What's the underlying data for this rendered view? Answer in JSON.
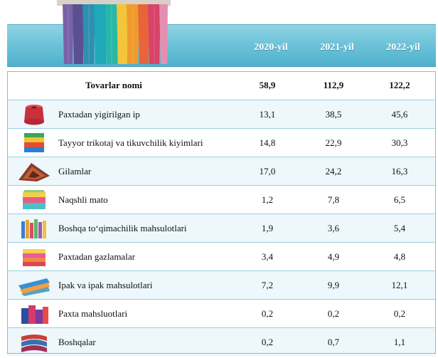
{
  "header": {
    "years": [
      "2020-yil",
      "2021-yil",
      "2022-yil"
    ]
  },
  "table": {
    "head": {
      "label": "Tovarlar nomi",
      "values": [
        "58,9",
        "112,9",
        "122,2"
      ]
    },
    "rows": [
      {
        "icon": "yarn-spool-icon",
        "name": "Paxtadan yigirilgan ip",
        "values": [
          "13,1",
          "38,5",
          "45,6"
        ]
      },
      {
        "icon": "folded-clothes-icon",
        "name": "Tayyor trikotaj va tikuvchilik kiyimlari",
        "values": [
          "14,8",
          "22,9",
          "30,3"
        ]
      },
      {
        "icon": "carpet-icon",
        "name": "Gilamlar",
        "values": [
          "17,0",
          "24,2",
          "16,3"
        ]
      },
      {
        "icon": "patterned-fabric-icon",
        "name": "Naqshli mato",
        "values": [
          "1,2",
          "7,8",
          "6,5"
        ]
      },
      {
        "icon": "textile-products-icon",
        "name": "Boshqa to‘qimachilik mahsulotlari",
        "values": [
          "1,9",
          "3,6",
          "5,4"
        ]
      },
      {
        "icon": "fabric-stack-icon",
        "name": "Paxtadan gazlamalar",
        "values": [
          "3,4",
          "4,9",
          "4,8"
        ]
      },
      {
        "icon": "silk-rolls-icon",
        "name": "Ipak va ipak mahsulotlari",
        "values": [
          "7,2",
          "9,9",
          "12,1"
        ]
      },
      {
        "icon": "cotton-products-icon",
        "name": "Paxta mahsluotlari",
        "values": [
          "0,2",
          "0,2",
          "0,2"
        ]
      },
      {
        "icon": "other-textiles-icon",
        "name": "Boshqalar",
        "values": [
          "0,2",
          "0,7",
          "1,1"
        ]
      }
    ]
  }
}
